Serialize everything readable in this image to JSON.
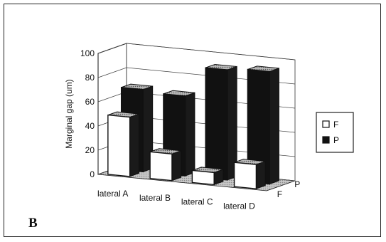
{
  "panel_label": "B",
  "chart_data": {
    "type": "bar",
    "style": "3d-clustered",
    "categories": [
      "lateral A",
      "lateral B",
      "lateral C",
      "lateral D"
    ],
    "series": [
      {
        "name": "F",
        "values": [
          49,
          22,
          10,
          20
        ],
        "color": "#ffffff"
      },
      {
        "name": "P",
        "values": [
          68,
          66,
          91,
          93
        ],
        "color": "#111111"
      }
    ],
    "depth_labels": [
      "P",
      "F"
    ],
    "ylabel": "Marginal gap (um)",
    "ylim": [
      0,
      100
    ],
    "yticks": [
      0,
      20,
      40,
      60,
      80,
      100
    ],
    "grid": true,
    "legend": {
      "position": "right",
      "entries": [
        "F",
        "P"
      ]
    },
    "colors": {
      "floor": "#b9b9b9",
      "edge": "#111111",
      "front_face": "#ffffff",
      "back_face": "#111111"
    }
  }
}
